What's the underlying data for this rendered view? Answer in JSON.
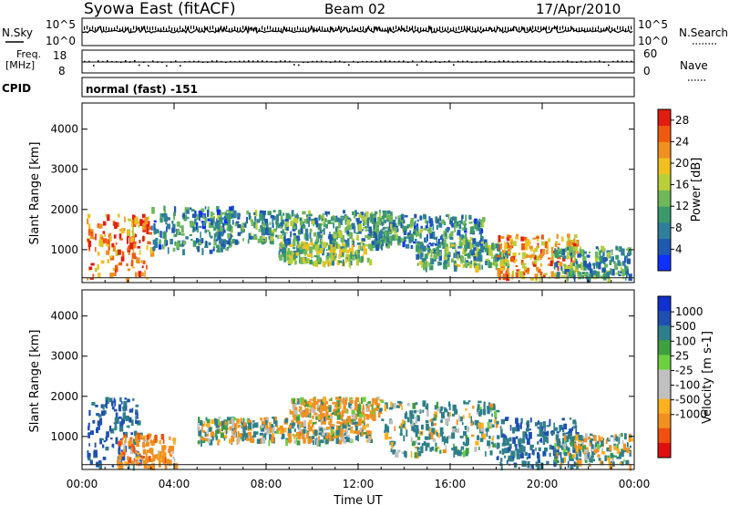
{
  "header": {
    "title": "Syowa East (fitACF)",
    "beam": "Beam 02",
    "date": "17/Apr/2010"
  },
  "noise_panel": {
    "left_label": "N.Sky",
    "left_ticks": [
      "10^5",
      "10^0"
    ],
    "right_label": "N.Search",
    "right_ticks": [
      "10^5",
      "10^0"
    ]
  },
  "freq_panel": {
    "left_label_1": "Freq.",
    "left_label_2": "[MHz]",
    "left_ticks": [
      "18",
      "8"
    ],
    "right_label": "Nave",
    "right_ticks": [
      "60",
      "0"
    ]
  },
  "cpid_panel": {
    "label": "CPID",
    "value": "normal (fast) -151"
  },
  "colors": {
    "power": [
      "#1030ff",
      "#1f5ab0",
      "#2f7f9a",
      "#3b9a6a",
      "#6fb85a",
      "#b8cf3a",
      "#f0c020",
      "#f09020",
      "#f05a10",
      "#e01e10"
    ],
    "velocity": [
      "#e01010",
      "#f05010",
      "#f09020",
      "#ffb020",
      "#c0c0c0",
      "#c0c0c0",
      "#6cd040",
      "#3fa040",
      "#2f7f8a",
      "#1f50b0",
      "#1030d0"
    ]
  },
  "chart_data": [
    {
      "type": "heatmap",
      "name": "power",
      "ylabel": "Slant Range [km]",
      "xlabel": "",
      "x_ticks": [
        "00:00",
        "04:00",
        "08:00",
        "12:00",
        "16:00",
        "20:00",
        "00:00"
      ],
      "x_range_hours": [
        0,
        24
      ],
      "y_ticks": [
        "1000",
        "2000",
        "3000",
        "4000"
      ],
      "y_range_km": [
        180,
        4650
      ],
      "colorbar": {
        "label": "Power [dB]",
        "ticks": [
          "4",
          "8",
          "12",
          "16",
          "20",
          "24",
          "28"
        ],
        "range": [
          0,
          30
        ]
      },
      "scatter_regions": [
        {
          "t0": 0.2,
          "t1": 3.0,
          "r0": 300,
          "r1": 1900,
          "value": 24
        },
        {
          "t0": 3.0,
          "t1": 6.5,
          "r0": 1000,
          "r1": 2100,
          "value": 8
        },
        {
          "t0": 5.5,
          "t1": 13.5,
          "r0": 1200,
          "r1": 2000,
          "value": 10
        },
        {
          "t0": 8.5,
          "t1": 12.5,
          "r0": 700,
          "r1": 1200,
          "value": 14
        },
        {
          "t0": 12.5,
          "t1": 17.5,
          "r0": 1100,
          "r1": 1900,
          "value": 9
        },
        {
          "t0": 14.5,
          "t1": 18.5,
          "r0": 600,
          "r1": 1200,
          "value": 12
        },
        {
          "t0": 18.0,
          "t1": 21.5,
          "r0": 300,
          "r1": 1400,
          "value": 22
        },
        {
          "t0": 20.5,
          "t1": 23.8,
          "r0": 300,
          "r1": 1100,
          "value": 10
        }
      ]
    },
    {
      "type": "heatmap",
      "name": "velocity",
      "ylabel": "Slant Range [km]",
      "xlabel": "Time UT",
      "x_ticks": [
        "00:00",
        "04:00",
        "08:00",
        "12:00",
        "16:00",
        "20:00",
        "00:00"
      ],
      "x_range_hours": [
        0,
        24
      ],
      "y_ticks": [
        "1000",
        "2000",
        "3000",
        "4000"
      ],
      "y_range_km": [
        180,
        4650
      ],
      "colorbar": {
        "label": "Velocity [m s-1]",
        "ticks": [
          "1000",
          "500",
          "100",
          "25",
          "-25",
          "-100",
          "-500",
          "-1000"
        ]
      },
      "scatter_regions": [
        {
          "t0": 0.2,
          "t1": 2.5,
          "r0": 300,
          "r1": 2000,
          "value": 600
        },
        {
          "t0": 1.5,
          "t1": 4.0,
          "r0": 300,
          "r1": 1100,
          "value": -300
        },
        {
          "t0": 5.0,
          "t1": 12.5,
          "r0": 900,
          "r1": 1500,
          "value": 0
        },
        {
          "t0": 9.0,
          "t1": 13.0,
          "r0": 1500,
          "r1": 2000,
          "value": -150
        },
        {
          "t0": 13.0,
          "t1": 18.0,
          "r0": 600,
          "r1": 1900,
          "value": 150
        },
        {
          "t0": 18.0,
          "t1": 21.5,
          "r0": 300,
          "r1": 1500,
          "value": 400
        },
        {
          "t0": 20.5,
          "t1": 23.8,
          "r0": 300,
          "r1": 1100,
          "value": 80
        }
      ]
    }
  ]
}
